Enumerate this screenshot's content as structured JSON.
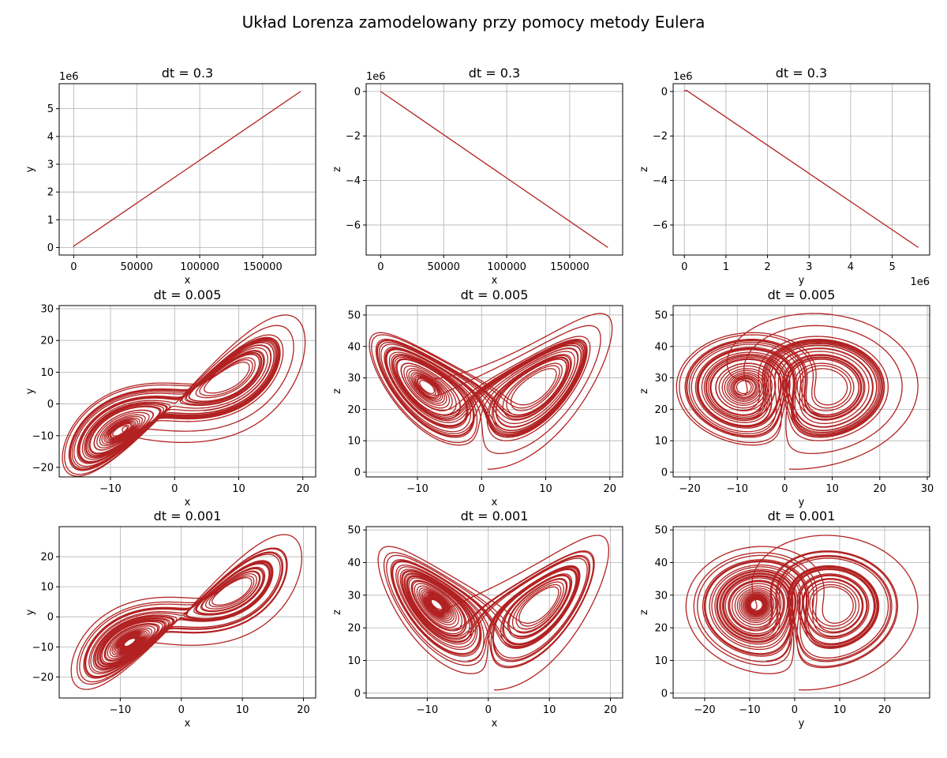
{
  "figure": {
    "suptitle": "Układ Lorenza zamodelowany przy pomocy metody Eulera",
    "line_color": "#b22222"
  },
  "chart_data": [
    {
      "type": "line",
      "title": "dt = 0.3",
      "xlabel": "x",
      "ylabel": "y",
      "x_offset_label": "",
      "y_offset_label": "1e6",
      "xlim": [
        -11500,
        192000
      ],
      "ylim": [
        -0.27,
        5.9
      ],
      "grid": true,
      "xticks": [
        0,
        50000,
        100000,
        150000
      ],
      "xtick_labels": [
        "0",
        "50000",
        "100000",
        "150000"
      ],
      "yticks": [
        0,
        1,
        2,
        3,
        4,
        5
      ],
      "ytick_labels": [
        "0",
        "1",
        "2",
        "3",
        "4",
        "5"
      ],
      "series": [
        {
          "kind": "polyline",
          "points": [
            [
              0,
              0.03
            ],
            [
              1,
              0.05
            ],
            [
              180000,
              5.62
            ]
          ]
        }
      ]
    },
    {
      "type": "line",
      "title": "dt = 0.3",
      "xlabel": "x",
      "ylabel": "z",
      "x_offset_label": "",
      "y_offset_label": "1e6",
      "xlim": [
        -11500,
        192000
      ],
      "ylim": [
        -7.35,
        0.35
      ],
      "grid": true,
      "xticks": [
        0,
        50000,
        100000,
        150000
      ],
      "xtick_labels": [
        "0",
        "50000",
        "100000",
        "150000"
      ],
      "yticks": [
        0,
        -2,
        -4,
        -6
      ],
      "ytick_labels": [
        "0",
        "−2",
        "−4",
        "−6"
      ],
      "series": [
        {
          "kind": "polyline",
          "points": [
            [
              0,
              0.0
            ],
            [
              180000,
              -7.0
            ]
          ]
        }
      ]
    },
    {
      "type": "line",
      "title": "dt = 0.3",
      "xlabel": "y",
      "ylabel": "z",
      "x_offset_label": "1e6",
      "y_offset_label": "1e6",
      "xlim": [
        -0.27,
        5.9
      ],
      "ylim": [
        -7.35,
        0.35
      ],
      "grid": true,
      "xticks": [
        0,
        1,
        2,
        3,
        4,
        5
      ],
      "xtick_labels": [
        "0",
        "1",
        "2",
        "3",
        "4",
        "5"
      ],
      "yticks": [
        0,
        -2,
        -4,
        -6
      ],
      "ytick_labels": [
        "0",
        "−2",
        "−4",
        "−6"
      ],
      "series": [
        {
          "kind": "polyline",
          "points": [
            [
              0.0,
              0.03
            ],
            [
              0.05,
              0.05
            ],
            [
              5.62,
              -7.0
            ]
          ]
        }
      ]
    },
    {
      "type": "line",
      "title": "dt = 0.005",
      "xlabel": "x",
      "ylabel": "y",
      "x_offset_label": "",
      "y_offset_label": "",
      "xlim": [
        -18,
        22
      ],
      "ylim": [
        -23,
        31
      ],
      "grid": true,
      "xticks": [
        -10,
        0,
        10,
        20
      ],
      "xtick_labels": [
        "−10",
        "0",
        "10",
        "20"
      ],
      "yticks": [
        -20,
        -10,
        0,
        10,
        20,
        30
      ],
      "ytick_labels": [
        "−20",
        "−10",
        "0",
        "10",
        "20",
        "30"
      ],
      "series": [
        {
          "kind": "lorenz",
          "projection": "xy",
          "dt": 0.005,
          "steps": 8000
        }
      ]
    },
    {
      "type": "line",
      "title": "dt = 0.005",
      "xlabel": "x",
      "ylabel": "z",
      "x_offset_label": "",
      "y_offset_label": "",
      "xlim": [
        -18,
        22
      ],
      "ylim": [
        -1.5,
        53
      ],
      "grid": true,
      "xticks": [
        -10,
        0,
        10,
        20
      ],
      "xtick_labels": [
        "−10",
        "0",
        "10",
        "20"
      ],
      "yticks": [
        0,
        10,
        20,
        30,
        40,
        50
      ],
      "ytick_labels": [
        "0",
        "10",
        "20",
        "30",
        "40",
        "50"
      ],
      "series": [
        {
          "kind": "lorenz",
          "projection": "xz",
          "dt": 0.005,
          "steps": 8000
        }
      ]
    },
    {
      "type": "line",
      "title": "dt = 0.005",
      "xlabel": "y",
      "ylabel": "z",
      "x_offset_label": "",
      "y_offset_label": "",
      "xlim": [
        -23.5,
        30.5
      ],
      "ylim": [
        -1.5,
        53
      ],
      "grid": true,
      "xticks": [
        -20,
        -10,
        0,
        10,
        20,
        30
      ],
      "xtick_labels": [
        "−20",
        "−10",
        "0",
        "10",
        "20",
        "30"
      ],
      "yticks": [
        0,
        10,
        20,
        30,
        40,
        50
      ],
      "ytick_labels": [
        "0",
        "10",
        "20",
        "30",
        "40",
        "50"
      ],
      "series": [
        {
          "kind": "lorenz",
          "projection": "yz",
          "dt": 0.005,
          "steps": 8000
        }
      ]
    },
    {
      "type": "line",
      "title": "dt = 0.001",
      "xlabel": "x",
      "ylabel": "y",
      "x_offset_label": "",
      "y_offset_label": "",
      "xlim": [
        -20,
        22
      ],
      "ylim": [
        -27,
        30
      ],
      "grid": true,
      "xticks": [
        -10,
        0,
        10,
        20
      ],
      "xtick_labels": [
        "−10",
        "0",
        "10",
        "20"
      ],
      "yticks": [
        -20,
        -10,
        0,
        10,
        20
      ],
      "ytick_labels": [
        "−20",
        "−10",
        "0",
        "10",
        "20"
      ],
      "series": [
        {
          "kind": "lorenz",
          "projection": "xy",
          "dt": 0.001,
          "steps": 40000
        }
      ]
    },
    {
      "type": "line",
      "title": "dt = 0.001",
      "xlabel": "x",
      "ylabel": "z",
      "x_offset_label": "",
      "y_offset_label": "",
      "xlim": [
        -20,
        22
      ],
      "ylim": [
        -1.5,
        51
      ],
      "grid": true,
      "xticks": [
        -10,
        0,
        10,
        20
      ],
      "xtick_labels": [
        "−10",
        "0",
        "10",
        "20"
      ],
      "yticks": [
        0,
        10,
        20,
        30,
        40,
        50
      ],
      "ytick_labels": [
        "0",
        "10",
        "20",
        "30",
        "40",
        "50"
      ],
      "series": [
        {
          "kind": "lorenz",
          "projection": "xz",
          "dt": 0.001,
          "steps": 40000
        }
      ]
    },
    {
      "type": "line",
      "title": "dt = 0.001",
      "xlabel": "y",
      "ylabel": "z",
      "x_offset_label": "",
      "y_offset_label": "",
      "xlim": [
        -27,
        30
      ],
      "ylim": [
        -1.5,
        51
      ],
      "grid": true,
      "xticks": [
        -20,
        -10,
        0,
        10,
        20
      ],
      "xtick_labels": [
        "−20",
        "−10",
        "0",
        "10",
        "20"
      ],
      "yticks": [
        0,
        10,
        20,
        30,
        40,
        50
      ],
      "ytick_labels": [
        "0",
        "10",
        "20",
        "30",
        "40",
        "50"
      ],
      "series": [
        {
          "kind": "lorenz",
          "projection": "yz",
          "dt": 0.001,
          "steps": 40000
        }
      ]
    }
  ]
}
